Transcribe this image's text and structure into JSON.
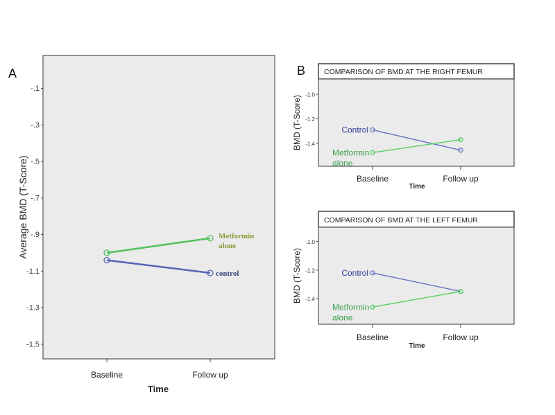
{
  "chart_data": [
    {
      "type": "line",
      "panel_label": "A",
      "title": "",
      "xlabel": "Time",
      "ylabel": "Average BMD (T-Score)",
      "categories": [
        "Baseline",
        "Follow up"
      ],
      "ylim": [
        -1.58,
        0.08
      ],
      "yticks": [
        -0.1,
        -0.3,
        -0.5,
        -0.7,
        -0.9,
        -1.1,
        -1.3,
        -1.5
      ],
      "ytick_labels": [
        "-.1",
        "-.3",
        "-.5",
        "-.7",
        "-.9",
        "-1.1",
        "-1.3",
        "-1.5"
      ],
      "series": [
        {
          "name": "Metformin alone",
          "label_lines": [
            "Metformin",
            "alone"
          ],
          "values": [
            -1.0,
            -0.92
          ],
          "color": "#4fc15a",
          "label_color": "#8a9a3a"
        },
        {
          "name": "control",
          "label_lines": [
            "control"
          ],
          "values": [
            -1.04,
            -1.11
          ],
          "color": "#5563b5",
          "label_color": "#3b4580"
        }
      ]
    },
    {
      "type": "line",
      "panel_label": "B",
      "title": "COMPARISON OF BMD AT THE RIGHT FEMUR",
      "xlabel": "Time",
      "ylabel": "BMD (T-Score)",
      "categories": [
        "Baseline",
        "Follow up"
      ],
      "ylim": [
        -1.586,
        -0.876
      ],
      "yticks": [
        -1.0,
        -1.2,
        -1.4
      ],
      "ytick_labels": [
        "-1.0",
        "-1.2",
        "-1.4"
      ],
      "series": [
        {
          "name": "Control",
          "label_lines": [
            "Control"
          ],
          "values": [
            -1.29,
            -1.455
          ],
          "color": "#6f78c8",
          "label_color": "#2f3a9a"
        },
        {
          "name": "Metformin alone",
          "label_lines": [
            "Metformin",
            "alone"
          ],
          "values": [
            -1.475,
            -1.37
          ],
          "color": "#5fd06a",
          "label_color": "#3aa04a"
        }
      ]
    },
    {
      "type": "line",
      "panel_label": "",
      "title": "COMPARISON OF BMD AT THE LEFT FEMUR",
      "xlabel": "Time",
      "ylabel": "BMD (T-Score)",
      "categories": [
        "Baseline",
        "Follow up"
      ],
      "ylim": [
        -1.58,
        -0.9
      ],
      "yticks": [
        -1.0,
        -1.2,
        -1.4
      ],
      "ytick_labels": [
        "-1.0",
        "-1.2",
        "-1.4"
      ],
      "series": [
        {
          "name": "Control",
          "label_lines": [
            "Control"
          ],
          "values": [
            -1.22,
            -1.35
          ],
          "color": "#6f78c8",
          "label_color": "#2f3a9a"
        },
        {
          "name": "Metformin alone",
          "label_lines": [
            "Metformin",
            "alone"
          ],
          "values": [
            -1.46,
            -1.35
          ],
          "color": "#5fd06a",
          "label_color": "#3aa04a"
        }
      ]
    }
  ]
}
